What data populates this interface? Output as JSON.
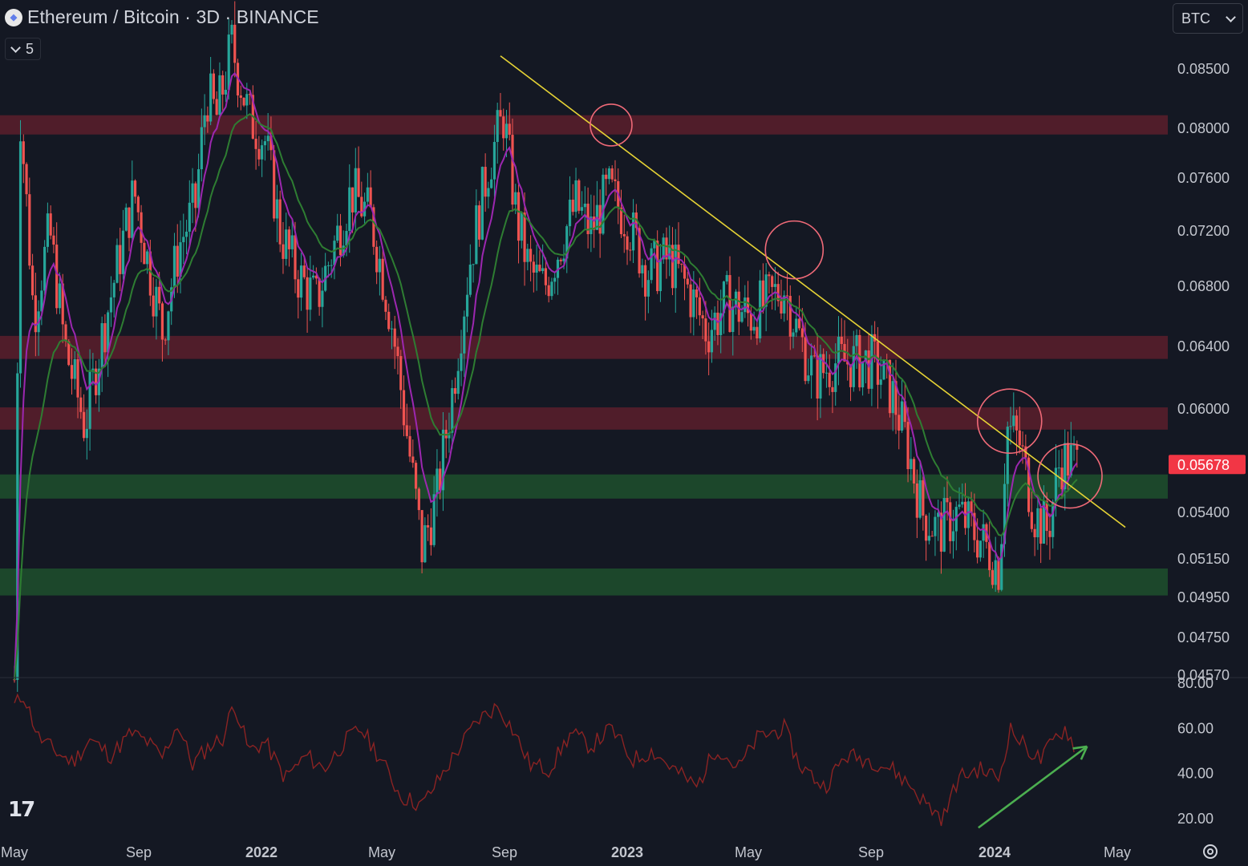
{
  "header": {
    "title": "Ethereum / Bitcoin · 3D · BINANCE",
    "indicator_count": "5",
    "currency": "BTC",
    "logo_letter": "◆"
  },
  "watermark": "17",
  "colors": {
    "background": "#141823",
    "up": "#26a69a",
    "down": "#ef5350",
    "ema_fast": "#9c27b0",
    "ema_slow": "#2e7d32",
    "resistance_zone": "#5a1f2b",
    "support_zone": "#1d4d2c",
    "trendline": "#e6d335",
    "rsi": "#8b2323",
    "arrow": "#4caf50",
    "price_tag": "#f23645"
  },
  "chart_data": {
    "type": "candlestick",
    "symbol": "ETHBTC",
    "interval": "3D",
    "exchange": "BINANCE",
    "price_axis": {
      "ticks": [
        "0.08500",
        "0.08000",
        "0.07600",
        "0.07200",
        "0.06800",
        "0.06400",
        "0.06000",
        "0.05400",
        "0.05150",
        "0.04950",
        "0.04750",
        "0.04570"
      ]
    },
    "last_price": "0.05678",
    "time_axis": [
      "May",
      "Sep",
      "2022",
      "May",
      "Sep",
      "2023",
      "May",
      "Sep",
      "2024",
      "May"
    ],
    "time_axis_bold": [
      "2022",
      "2023",
      "2024"
    ],
    "resistance_zones": [
      [
        0.0795,
        0.0811
      ],
      [
        0.0632,
        0.0647
      ],
      [
        0.0588,
        0.0601
      ]
    ],
    "support_zones": [
      [
        0.0548,
        0.0562
      ],
      [
        0.0496,
        0.051
      ]
    ],
    "trendline": {
      "from": [
        "2022-08-27",
        0.0861
      ],
      "to": [
        "2024-05-09",
        0.0532
      ]
    },
    "touch_circles": [
      "2022-12",
      "2023-06",
      "2024-01",
      "2024-03"
    ],
    "price_points": [
      [
        "2021-05-01",
        0.0455
      ],
      [
        "2021-05-07",
        0.081
      ],
      [
        "2021-05-20",
        0.066
      ],
      [
        "2021-06-05",
        0.072
      ],
      [
        "2021-06-20",
        0.064
      ],
      [
        "2021-07-10",
        0.059
      ],
      [
        "2021-07-25",
        0.064
      ],
      [
        "2021-08-10",
        0.069
      ],
      [
        "2021-08-28",
        0.075
      ],
      [
        "2021-09-10",
        0.07
      ],
      [
        "2021-09-25",
        0.065
      ],
      [
        "2021-10-12",
        0.071
      ],
      [
        "2021-10-28",
        0.074
      ],
      [
        "2021-11-08",
        0.083
      ],
      [
        "2021-11-18",
        0.081
      ],
      [
        "2021-12-03",
        0.087
      ],
      [
        "2021-12-20",
        0.081
      ],
      [
        "2022-01-05",
        0.079
      ],
      [
        "2022-01-20",
        0.072
      ],
      [
        "2022-02-05",
        0.069
      ],
      [
        "2022-02-25",
        0.067
      ],
      [
        "2022-03-15",
        0.071
      ],
      [
        "2022-04-01",
        0.075
      ],
      [
        "2022-04-20",
        0.073
      ],
      [
        "2022-05-10",
        0.066
      ],
      [
        "2022-05-25",
        0.059
      ],
      [
        "2022-06-10",
        0.052
      ],
      [
        "2022-06-25",
        0.055
      ],
      [
        "2022-07-10",
        0.061
      ],
      [
        "2022-07-28",
        0.07
      ],
      [
        "2022-08-15",
        0.077
      ],
      [
        "2022-08-30",
        0.081
      ],
      [
        "2022-09-12",
        0.073
      ],
      [
        "2022-09-25",
        0.069
      ],
      [
        "2022-10-10",
        0.068
      ],
      [
        "2022-10-25",
        0.071
      ],
      [
        "2022-11-10",
        0.074
      ],
      [
        "2022-11-25",
        0.072
      ],
      [
        "2022-12-12",
        0.075
      ],
      [
        "2022-12-30",
        0.073
      ],
      [
        "2023-01-20",
        0.069
      ],
      [
        "2023-02-10",
        0.07
      ],
      [
        "2023-02-28",
        0.068
      ],
      [
        "2023-03-20",
        0.065
      ],
      [
        "2023-04-10",
        0.067
      ],
      [
        "2023-05-01",
        0.066
      ],
      [
        "2023-05-20",
        0.067
      ],
      [
        "2023-06-05",
        0.068
      ],
      [
        "2023-06-18",
        0.065
      ],
      [
        "2023-07-05",
        0.062
      ],
      [
        "2023-07-25",
        0.063
      ],
      [
        "2023-08-15",
        0.063
      ],
      [
        "2023-09-01",
        0.063
      ],
      [
        "2023-09-20",
        0.061
      ],
      [
        "2023-10-05",
        0.058
      ],
      [
        "2023-10-20",
        0.054
      ],
      [
        "2023-11-05",
        0.053
      ],
      [
        "2023-11-25",
        0.054
      ],
      [
        "2023-12-10",
        0.053
      ],
      [
        "2023-12-25",
        0.052
      ],
      [
        "2024-01-05",
        0.051
      ],
      [
        "2024-01-12",
        0.059
      ],
      [
        "2024-01-25",
        0.058
      ],
      [
        "2024-02-08",
        0.054
      ],
      [
        "2024-02-22",
        0.053
      ],
      [
        "2024-03-05",
        0.057
      ],
      [
        "2024-03-15",
        0.057
      ],
      [
        "2024-03-22",
        0.0568
      ]
    ],
    "rsi": {
      "axis_ticks": [
        "80.00",
        "60.00",
        "40.00",
        "20.00"
      ],
      "points": [
        [
          "2021-05-01",
          70
        ],
        [
          "2021-05-10",
          75
        ],
        [
          "2021-05-25",
          56
        ],
        [
          "2021-06-10",
          50
        ],
        [
          "2021-06-28",
          45
        ],
        [
          "2021-07-15",
          55
        ],
        [
          "2021-08-05",
          48
        ],
        [
          "2021-08-25",
          58
        ],
        [
          "2021-09-10",
          54
        ],
        [
          "2021-09-25",
          47
        ],
        [
          "2021-10-10",
          62
        ],
        [
          "2021-10-25",
          44
        ],
        [
          "2021-11-10",
          52
        ],
        [
          "2021-11-25",
          56
        ],
        [
          "2021-12-05",
          72
        ],
        [
          "2021-12-20",
          50
        ],
        [
          "2022-01-05",
          54
        ],
        [
          "2022-01-25",
          38
        ],
        [
          "2022-02-15",
          48
        ],
        [
          "2022-03-05",
          42
        ],
        [
          "2022-03-25",
          54
        ],
        [
          "2022-04-10",
          60
        ],
        [
          "2022-04-28",
          48
        ],
        [
          "2022-05-20",
          30
        ],
        [
          "2022-06-10",
          26
        ],
        [
          "2022-06-25",
          36
        ],
        [
          "2022-07-15",
          50
        ],
        [
          "2022-08-05",
          64
        ],
        [
          "2022-08-25",
          70
        ],
        [
          "2022-09-10",
          58
        ],
        [
          "2022-09-25",
          44
        ],
        [
          "2022-10-15",
          42
        ],
        [
          "2022-11-05",
          58
        ],
        [
          "2022-11-25",
          52
        ],
        [
          "2022-12-15",
          60
        ],
        [
          "2023-01-05",
          46
        ],
        [
          "2023-01-25",
          50
        ],
        [
          "2023-02-15",
          42
        ],
        [
          "2023-03-10",
          34
        ],
        [
          "2023-03-30",
          52
        ],
        [
          "2023-04-20",
          42
        ],
        [
          "2023-05-10",
          56
        ],
        [
          "2023-06-05",
          60
        ],
        [
          "2023-06-20",
          44
        ],
        [
          "2023-07-15",
          34
        ],
        [
          "2023-08-05",
          48
        ],
        [
          "2023-08-30",
          46
        ],
        [
          "2023-09-20",
          42
        ],
        [
          "2023-10-10",
          34
        ],
        [
          "2023-10-25",
          26
        ],
        [
          "2023-11-10",
          20
        ],
        [
          "2023-11-25",
          38
        ],
        [
          "2023-12-15",
          42
        ],
        [
          "2024-01-05",
          38
        ],
        [
          "2024-01-15",
          60
        ],
        [
          "2024-01-30",
          52
        ],
        [
          "2024-02-15",
          46
        ],
        [
          "2024-03-01",
          56
        ],
        [
          "2024-03-10",
          60
        ],
        [
          "2024-03-20",
          52
        ]
      ],
      "arrow": {
        "from": [
          "2023-12-15",
          16
        ],
        "to": [
          "2024-04-01",
          52
        ]
      }
    }
  }
}
